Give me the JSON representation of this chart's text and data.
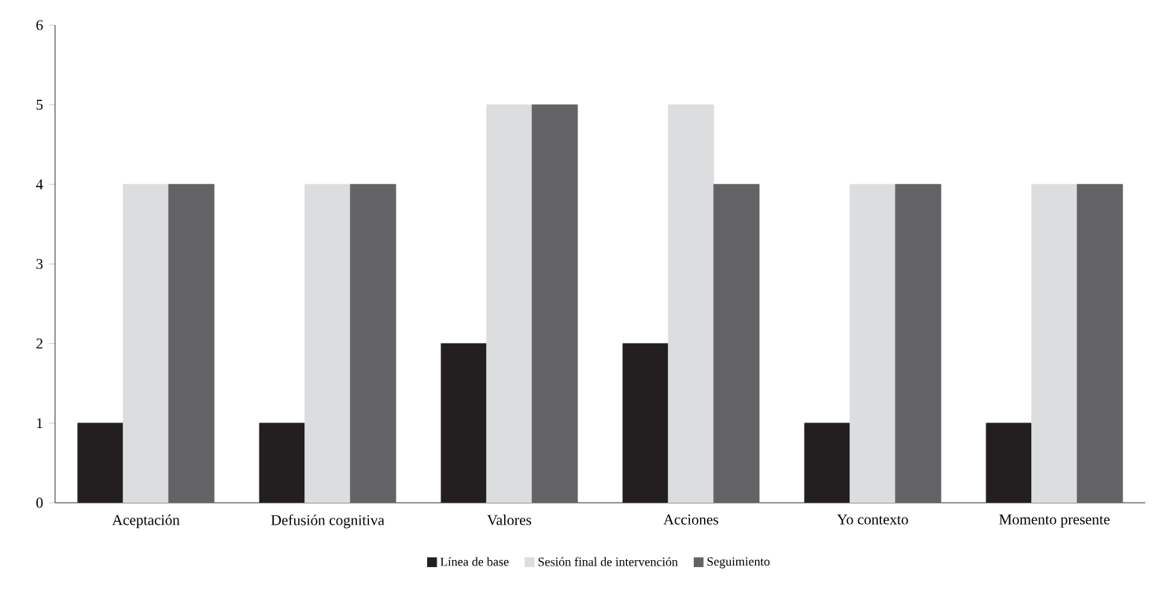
{
  "chart_data": {
    "type": "bar",
    "categories": [
      "Aceptación",
      "Defusión cognitiva",
      "Valores",
      "Acciones",
      "Yo contexto",
      "Momento presente"
    ],
    "series": [
      {
        "name": "Línea de base",
        "color": "#231f20",
        "values": [
          1,
          1,
          2,
          2,
          1,
          1
        ]
      },
      {
        "name": "Sesión final de intervención",
        "color": "#dcdddf",
        "values": [
          4,
          4,
          5,
          5,
          4,
          4
        ]
      },
      {
        "name": "Seguimiento",
        "color": "#636366",
        "values": [
          4,
          4,
          5,
          4,
          4,
          4
        ]
      }
    ],
    "ylim": [
      0,
      6
    ],
    "yticks": [
      0,
      1,
      2,
      3,
      4,
      5,
      6
    ],
    "grid": false,
    "legend": "bottom"
  }
}
